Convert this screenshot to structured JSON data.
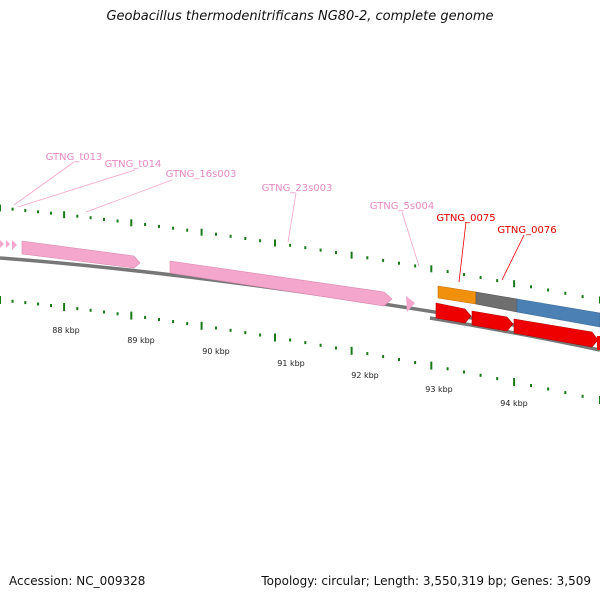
{
  "title": "Geobacillus thermodenitrificans NG80-2, complete genome",
  "footer": {
    "accession": "Accession: NC_009328",
    "summary": "Topology: circular; Length: 3,550,319 bp; Genes: 3,509"
  },
  "colors": {
    "rna_feature": "#f4a6cc",
    "rna_label": "#e88ac0",
    "gene_red": "#ee0000",
    "gene_orange": "#f0900c",
    "gene_grey": "#6f6f6f",
    "gene_blue": "#4a80b4",
    "tick": "#1a7a1a",
    "backbone": "#777777"
  },
  "axis": {
    "unit": "kbp",
    "ticks": [
      {
        "value": 88,
        "label": "88 kbp"
      },
      {
        "value": 89,
        "label": "89 kbp"
      },
      {
        "value": 90,
        "label": "90 kbp"
      },
      {
        "value": 91,
        "label": "91 kbp"
      },
      {
        "value": 92,
        "label": "92 kbp"
      },
      {
        "value": 93,
        "label": "93 kbp"
      },
      {
        "value": 94,
        "label": "94 kbp"
      }
    ]
  },
  "features": [
    {
      "name": "GTNG_t013",
      "type": "tRNA"
    },
    {
      "name": "GTNG_t014",
      "type": "tRNA"
    },
    {
      "name": "GTNG_16s003",
      "type": "rRNA"
    },
    {
      "name": "GTNG_23s003",
      "type": "rRNA"
    },
    {
      "name": "GTNG_5s004",
      "type": "rRNA"
    },
    {
      "name": "GTNG_0075",
      "type": "gene"
    },
    {
      "name": "GTNG_0076",
      "type": "gene"
    }
  ]
}
